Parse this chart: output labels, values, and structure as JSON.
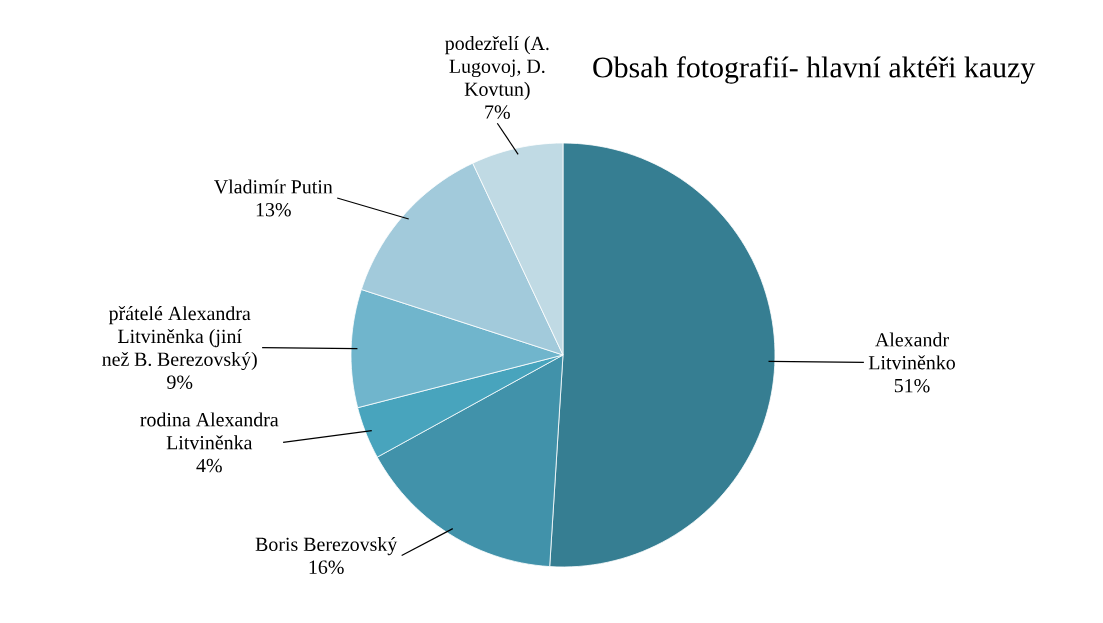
{
  "chart_data": {
    "type": "pie",
    "title": "Obsah fotografií- hlavní aktéři kauzy",
    "categories": [
      "Alexandr Litviněnko",
      "Boris Berezovský",
      "rodina Alexandra Litviněnka",
      "přátelé Alexandra Litviněnka (jiní než B. Berezovský)",
      "Vladimír Putin",
      "podezřelí (A. Lugovoj, D. Kovtun)"
    ],
    "values": [
      51,
      16,
      4,
      9,
      13,
      7
    ],
    "value_labels": [
      "51%",
      "16%",
      "4%",
      "9%",
      "13%",
      "7%"
    ],
    "colors": [
      "#367e92",
      "#4192aa",
      "#48a4bd",
      "#70b5cc",
      "#a2cadb",
      "#c0dae4"
    ]
  }
}
